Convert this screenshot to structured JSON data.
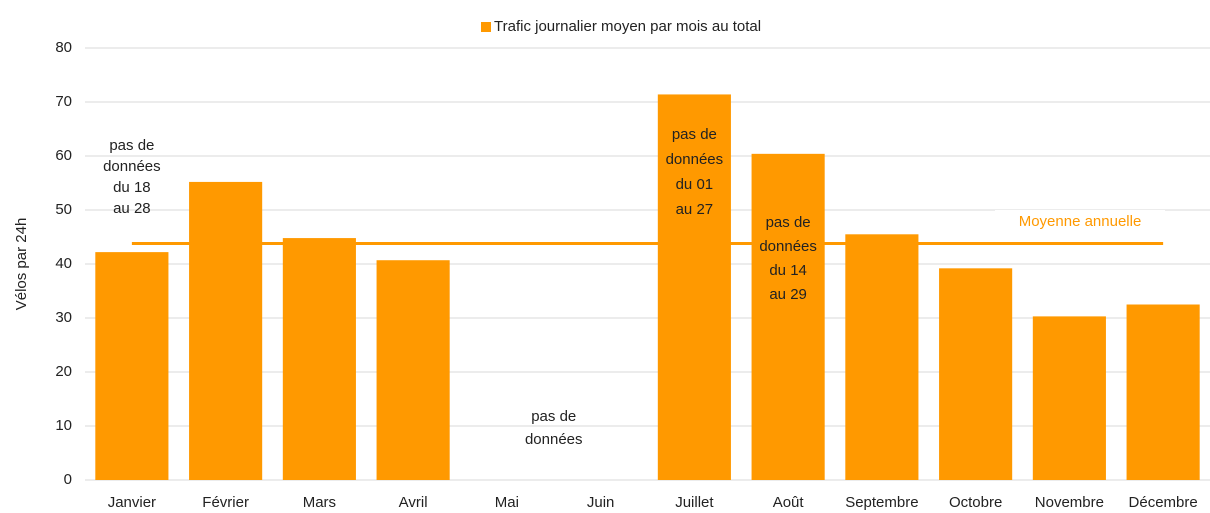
{
  "chart_data": {
    "type": "bar",
    "legend": "Trafic journalier moyen par mois au total",
    "y_label": "Vélos par 24h",
    "categories": [
      "Janvier",
      "Février",
      "Mars",
      "Avril",
      "Mai",
      "Juin",
      "Juillet",
      "Août",
      "Septembre",
      "Octobre",
      "Novembre",
      "Décembre"
    ],
    "values": [
      42.2,
      55.2,
      44.8,
      40.7,
      null,
      null,
      71.4,
      60.4,
      45.5,
      39.2,
      30.3,
      32.5
    ],
    "color": "#ff9900",
    "ylim": [
      0,
      80
    ],
    "yticks": [
      0,
      10,
      20,
      30,
      40,
      50,
      60,
      70,
      80
    ],
    "grid": true,
    "reference_line": {
      "label": "Moyenne annuelle",
      "value": 43.8,
      "color": "#ff9900"
    },
    "annotations": [
      [
        "pas de",
        "données",
        "du 18",
        "au 28"
      ],
      [
        "pas de",
        "données"
      ],
      [
        "pas de",
        "données",
        "du 01",
        "au 27"
      ],
      [
        "pas de",
        "données",
        "du 14",
        "au 29"
      ]
    ]
  }
}
